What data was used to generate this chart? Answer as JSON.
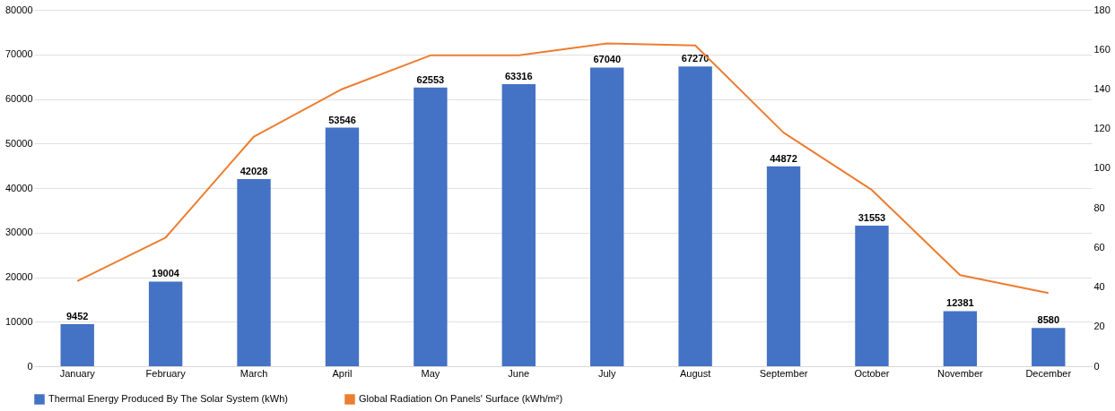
{
  "chart_data": {
    "type": "bar",
    "categories": [
      "January",
      "February",
      "March",
      "April",
      "May",
      "June",
      "July",
      "August",
      "September",
      "October",
      "November",
      "December"
    ],
    "series": [
      {
        "name": "Thermal Energy Produced By The Solar System (kWh)",
        "color": "#4472c4",
        "values": [
          9452,
          19004,
          42028,
          53546,
          62553,
          63316,
          67040,
          67270,
          44872,
          31553,
          12381,
          8580
        ],
        "value_labels": [
          "9452",
          "19004",
          "42028",
          "53546",
          "62553",
          "63316",
          "67040",
          "67270",
          "44872",
          "31553",
          "12381",
          "8580"
        ]
      },
      {
        "name": "Global Radiation On Panels' Surface (kWh/m²)",
        "color": "#ed7d31",
        "type": "line",
        "axis": "y2",
        "values": [
          43,
          65,
          116,
          140,
          157,
          157,
          163,
          162,
          118,
          89,
          46,
          37
        ]
      }
    ],
    "ylim": [
      0,
      80000
    ],
    "yticks": [
      0,
      10000,
      20000,
      30000,
      40000,
      50000,
      60000,
      70000,
      80000
    ],
    "y2lim": [
      0,
      180
    ],
    "y2ticks": [
      0,
      20,
      40,
      60,
      80,
      100,
      120,
      140,
      160,
      180
    ],
    "grid": "y",
    "legend": "bottom",
    "marker": "none"
  }
}
